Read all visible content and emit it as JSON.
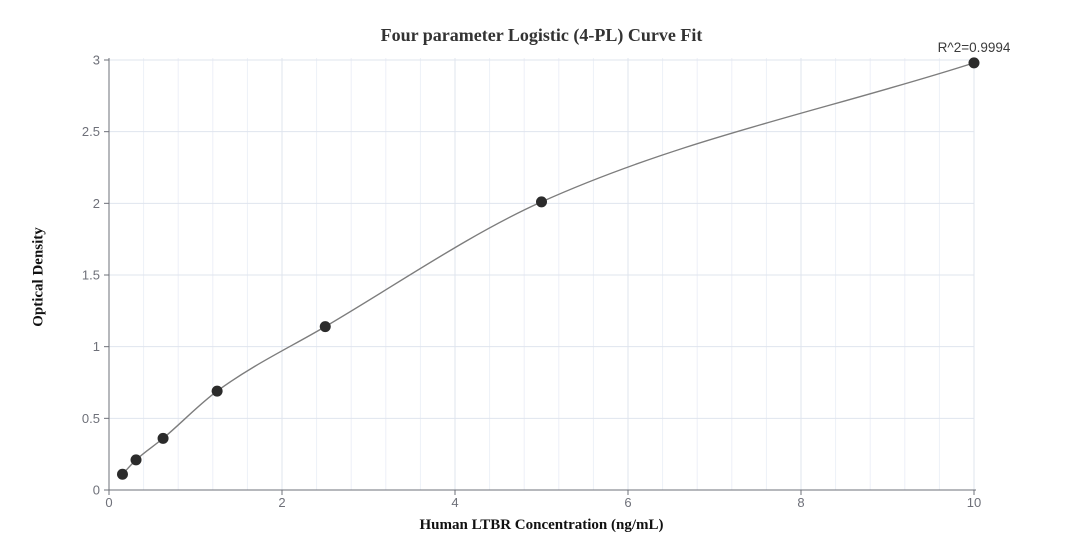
{
  "chart_data": {
    "type": "scatter",
    "title": "Four parameter Logistic (4-PL) Curve Fit",
    "annotation": "R^2=0.9994",
    "xlabel": "Human LTBR Concentration (ng/mL)",
    "ylabel": "Optical Density",
    "series": [
      {
        "name": "standard-points-with-4pl-fit-curve",
        "x": [
          0.156,
          0.3125,
          0.625,
          1.25,
          2.5,
          5,
          10
        ],
        "y": [
          0.11,
          0.21,
          0.36,
          0.69,
          1.14,
          2.01,
          2.98
        ]
      }
    ],
    "x_ticks": [
      0,
      2,
      4,
      6,
      8,
      10
    ],
    "y_ticks": [
      0,
      0.5,
      1,
      1.5,
      2,
      2.5,
      3
    ],
    "xlim": [
      0,
      10
    ],
    "ylim": [
      0,
      3
    ],
    "grid": {
      "horizontal_major_step": 0.5,
      "vertical_major_step": 2,
      "vertical_minor_step": 0.4
    },
    "legend_position": "none",
    "colors": {
      "point": "#2b2b2b",
      "curve": "#7d7d7d",
      "axis": "#6E7079",
      "tick_label": "#6E7079",
      "grid_major": "#DFE4EE",
      "grid_minor": "#EDF0F7",
      "title_text": "#333333",
      "annotation_text": "#3b3b3b",
      "axis_name_text": "#111111",
      "background": "#ffffff"
    }
  }
}
